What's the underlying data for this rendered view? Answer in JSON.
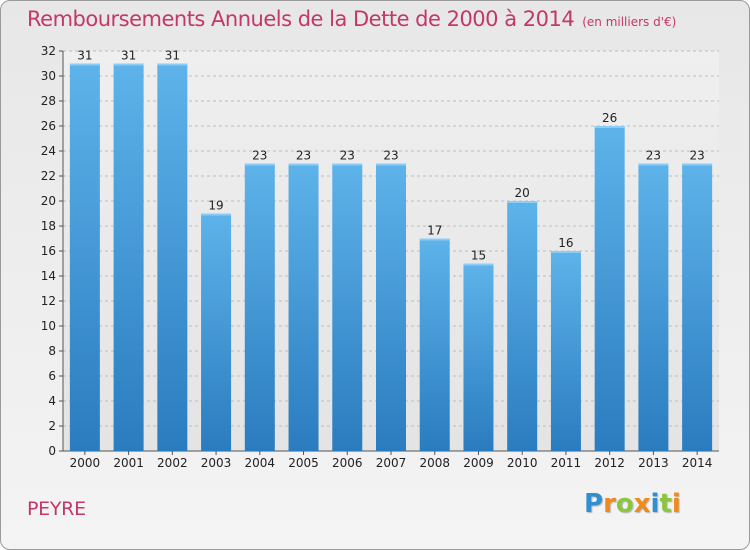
{
  "chart_data": {
    "type": "bar",
    "title": "Remboursements Annuels de la Dette de 2000 à 2014",
    "subtitle": "(en milliers d'€)",
    "xlabel": "",
    "ylabel": "",
    "categories": [
      "2000",
      "2001",
      "2002",
      "2003",
      "2004",
      "2005",
      "2006",
      "2007",
      "2008",
      "2009",
      "2010",
      "2011",
      "2012",
      "2013",
      "2014"
    ],
    "values": [
      31,
      31,
      31,
      19,
      23,
      23,
      23,
      23,
      17,
      15,
      20,
      16,
      26,
      23,
      23
    ],
    "ylim": [
      0,
      32
    ],
    "yticks": [
      0,
      2,
      4,
      6,
      8,
      10,
      12,
      14,
      16,
      18,
      20,
      22,
      24,
      26,
      28,
      30,
      32
    ],
    "grid": "horizontal-dashed",
    "bar_color": "#4a9fdc"
  },
  "commune": "PEYRE",
  "logo": {
    "letters": [
      {
        "ch": "P",
        "color": "#2f8fd0"
      },
      {
        "ch": "r",
        "color": "#f08a1c"
      },
      {
        "ch": "o",
        "color": "#8cc63f"
      },
      {
        "ch": "x",
        "color": "#f08a1c"
      },
      {
        "ch": "i",
        "color": "#2f8fd0"
      },
      {
        "ch": "t",
        "color": "#8cc63f"
      },
      {
        "ch": "i",
        "color": "#f08a1c"
      }
    ]
  }
}
